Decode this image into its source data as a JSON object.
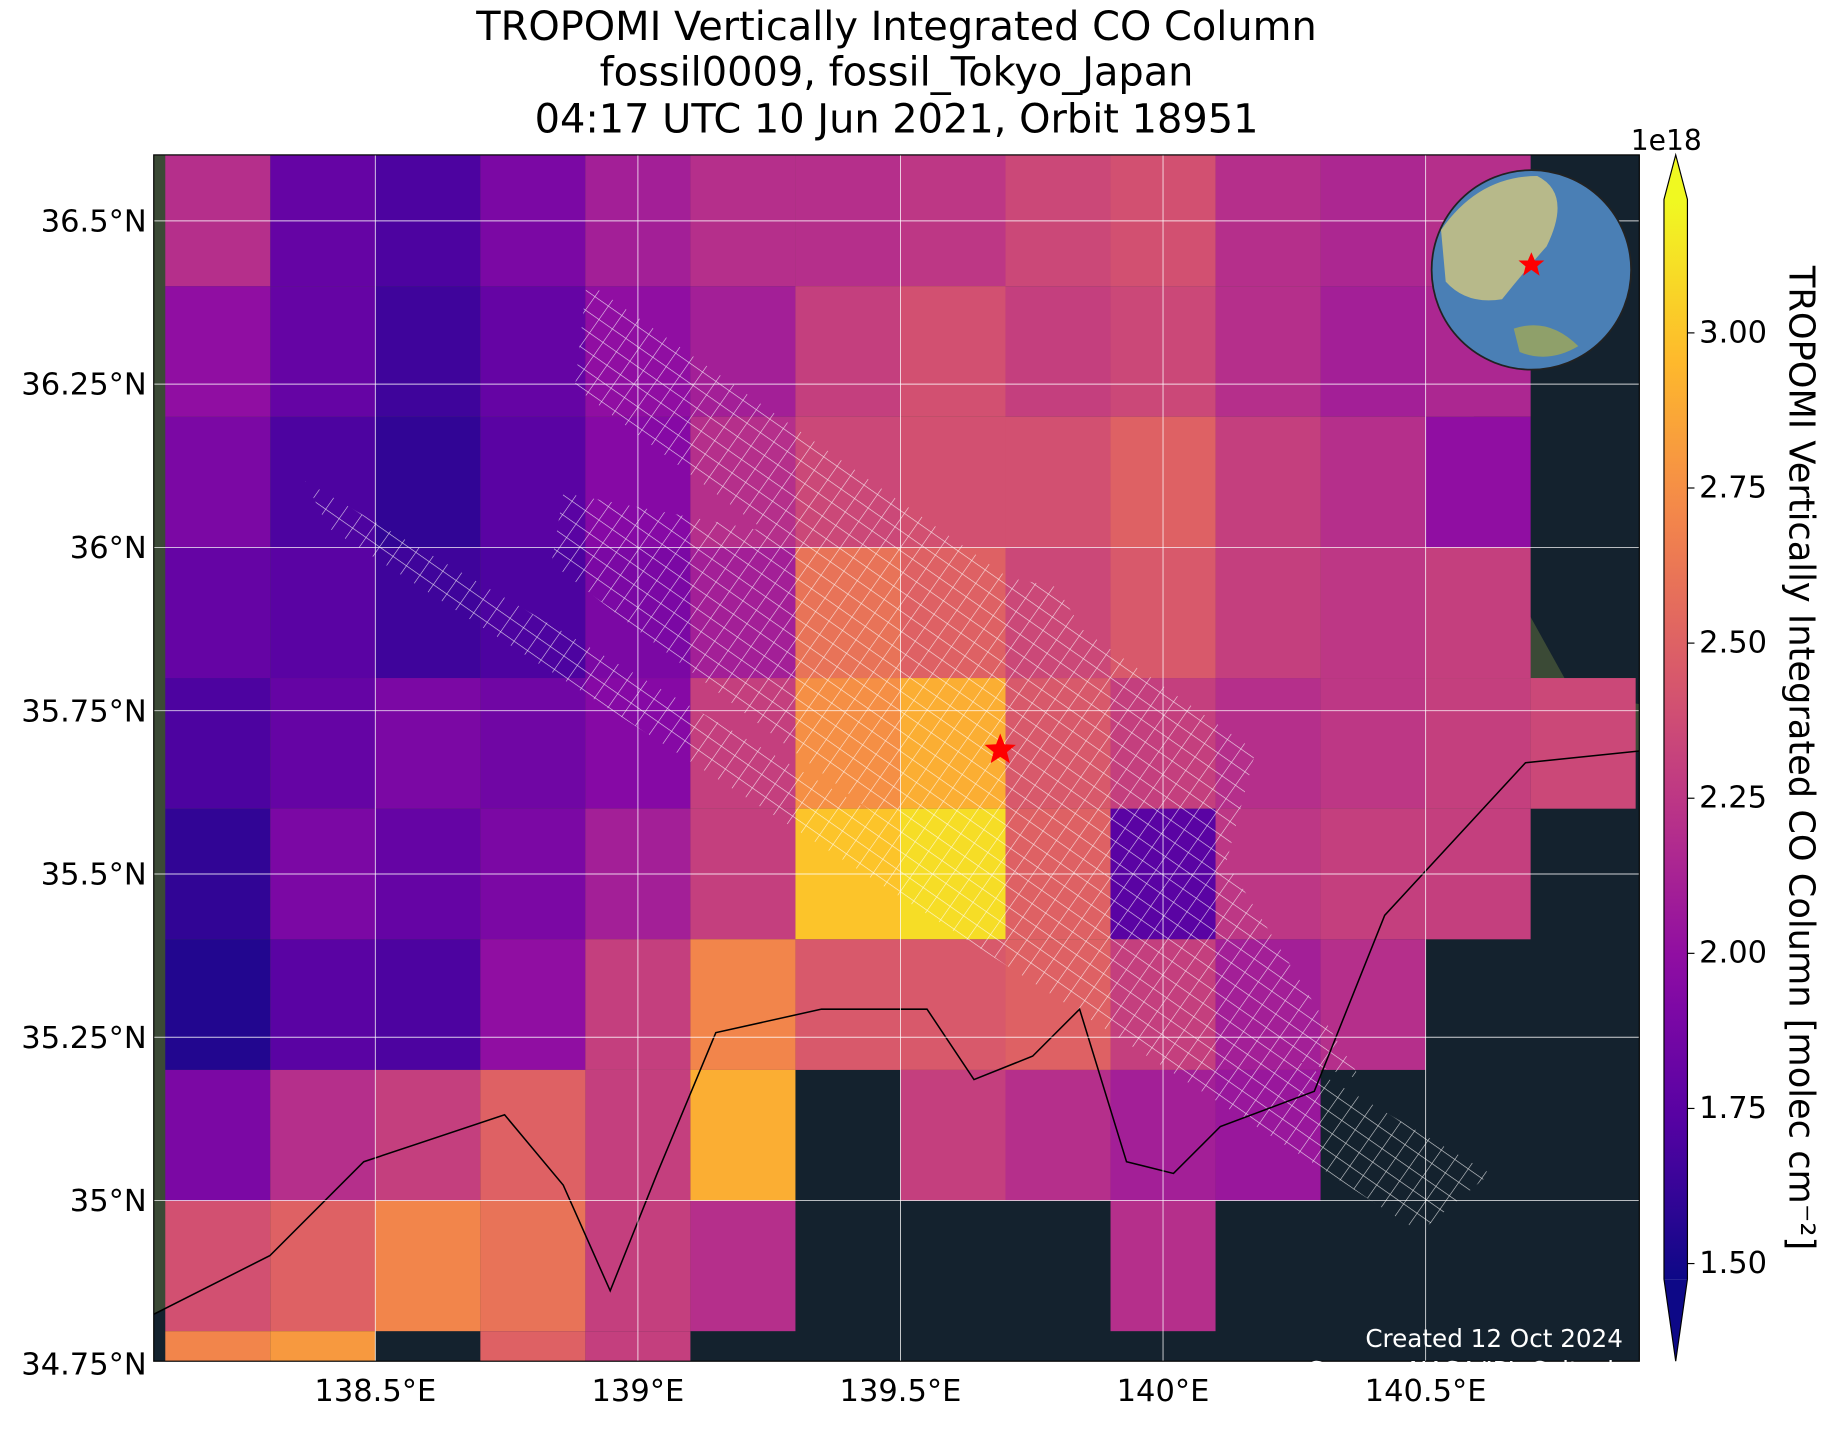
{
  "chart_data": {
    "type": "heatmap",
    "title": [
      "TROPOMI Vertically Integrated CO Column",
      "fossil0009, fossil_Tokyo_Japan",
      "04:17 UTC 10 Jun 2021, Orbit 18951"
    ],
    "xlim": [
      138.078,
      140.907
    ],
    "ylim": [
      34.754,
      36.601
    ],
    "xticks": [
      {
        "value": 138.5,
        "label": "138.5°E"
      },
      {
        "value": 139,
        "label": "139°E"
      },
      {
        "value": 139.5,
        "label": "139.5°E"
      },
      {
        "value": 140,
        "label": "140°E"
      },
      {
        "value": 140.5,
        "label": "140.5°E"
      }
    ],
    "yticks": [
      {
        "value": 34.75,
        "label": "34.75°N"
      },
      {
        "value": 35,
        "label": "35°N"
      },
      {
        "value": 35.25,
        "label": "35.25°N"
      },
      {
        "value": 35.5,
        "label": "35.5°N"
      },
      {
        "value": 35.75,
        "label": "35.75°N"
      },
      {
        "value": 36,
        "label": "36°N"
      },
      {
        "value": 36.25,
        "label": "36.25°N"
      },
      {
        "value": 36.5,
        "label": "36.5°N"
      }
    ],
    "grid": true,
    "lon_edges": [
      138.1,
      138.3,
      138.5,
      138.7,
      138.9,
      139.1,
      139.3,
      139.5,
      139.7,
      139.9,
      140.1,
      140.3,
      140.5,
      140.7,
      140.9
    ],
    "lat_edges": [
      36.6,
      36.4,
      36.2,
      36.0,
      35.8,
      35.6,
      35.4,
      35.2,
      35.0,
      34.8,
      34.6
    ],
    "values": [
      [
        2.2,
        1.8,
        1.7,
        1.9,
        2.1,
        2.2,
        2.2,
        2.25,
        2.35,
        2.4,
        2.2,
        2.15,
        2.2,
        null
      ],
      [
        2.0,
        1.8,
        1.65,
        1.8,
        2.0,
        2.1,
        2.3,
        2.4,
        2.3,
        2.35,
        2.2,
        2.1,
        2.15,
        null
      ],
      [
        1.9,
        1.7,
        1.6,
        1.75,
        1.95,
        2.2,
        2.35,
        2.4,
        2.4,
        2.5,
        2.3,
        2.2,
        2.0,
        null
      ],
      [
        1.8,
        1.75,
        1.65,
        1.7,
        1.9,
        2.1,
        2.6,
        2.5,
        2.35,
        2.45,
        2.3,
        2.25,
        2.3,
        null
      ],
      [
        1.7,
        1.8,
        1.9,
        1.85,
        1.95,
        2.3,
        2.75,
        2.9,
        2.45,
        2.3,
        2.2,
        2.25,
        2.3,
        2.35
      ],
      [
        1.6,
        1.9,
        1.8,
        1.9,
        2.1,
        2.3,
        3.0,
        3.1,
        2.5,
        1.75,
        2.25,
        2.3,
        2.3,
        null
      ],
      [
        1.55,
        1.75,
        1.7,
        2.0,
        2.3,
        2.7,
        2.45,
        2.45,
        2.5,
        2.3,
        2.1,
        2.2,
        null,
        null
      ],
      [
        1.9,
        2.2,
        2.3,
        2.5,
        2.3,
        2.9,
        null,
        2.3,
        2.2,
        2.1,
        2.05,
        null,
        null,
        null
      ],
      [
        2.4,
        2.5,
        2.7,
        2.6,
        2.3,
        2.2,
        null,
        null,
        null,
        2.2,
        null,
        null,
        null,
        null
      ],
      [
        2.7,
        2.8,
        null,
        2.5,
        2.3,
        null,
        null,
        null,
        null,
        null,
        null,
        null,
        null,
        null
      ]
    ],
    "site": {
      "lon": 139.69,
      "lat": 35.69
    },
    "colorbar": {
      "label": "TROPOMI Vertically Integrated CO Column [molec cm⁻²]",
      "exponent": "1e18",
      "clim": [
        1.475,
        3.215
      ],
      "ticks": [
        {
          "value": 1.5,
          "label": "1.50"
        },
        {
          "value": 1.75,
          "label": "1.75"
        },
        {
          "value": 2,
          "label": "2.00"
        },
        {
          "value": 2.25,
          "label": "2.25"
        },
        {
          "value": 2.5,
          "label": "2.50"
        },
        {
          "value": 2.75,
          "label": "2.75"
        },
        {
          "value": 3,
          "label": "3.00"
        }
      ]
    },
    "footer": [
      "Created 12 Oct 2024",
      "Source: NASA/JPL-Caltech"
    ]
  }
}
